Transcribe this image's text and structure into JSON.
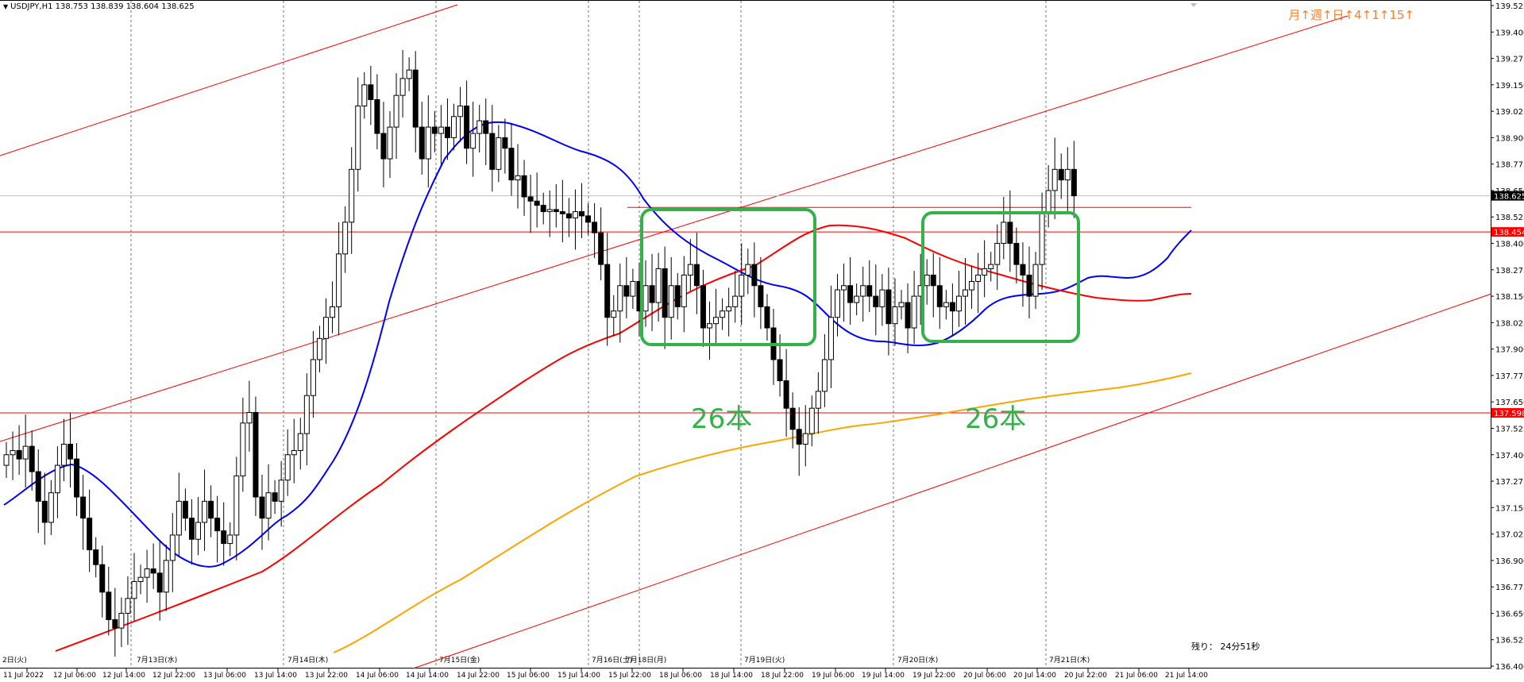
{
  "header": {
    "symbol_line": "USDJPY,H1  138.753 138.839 138.604 138.625"
  },
  "rate_label": "月↑週↑日↑4↑1↑15↑",
  "remaining_label": "残り： 24分51秒",
  "chart_data": {
    "type": "candlestick",
    "symbol": "USDJPY",
    "timeframe": "H1",
    "ohlc_current": {
      "open": 138.753,
      "high": 138.839,
      "low": 138.604,
      "close": 138.625
    },
    "ylim": [
      136.4,
      139.525
    ],
    "y_ticks": [
      "139.525",
      "139.400",
      "139.275",
      "139.150",
      "139.025",
      "138.900",
      "138.775",
      "138.650",
      "138.525",
      "138.400",
      "138.275",
      "138.150",
      "138.025",
      "137.900",
      "137.775",
      "137.650",
      "137.525",
      "137.400",
      "137.275",
      "137.150",
      "137.025",
      "136.900",
      "136.775",
      "136.650",
      "136.525",
      "136.400"
    ],
    "x_ticks": [
      "11 Jul 2022",
      "12 Jul 06:00",
      "12 Jul 14:00",
      "12 Jul 22:00",
      "13 Jul 06:00",
      "13 Jul 14:00",
      "13 Jul 22:00",
      "14 Jul 06:00",
      "14 Jul 14:00",
      "14 Jul 22:00",
      "15 Jul 06:00",
      "15 Jul 14:00",
      "15 Jul 22:00",
      "18 Jul 06:00",
      "18 Jul 14:00",
      "18 Jul 22:00",
      "19 Jul 06:00",
      "19 Jul 14:00",
      "19 Jul 22:00",
      "20 Jul 06:00",
      "20 Jul 14:00",
      "20 Jul 22:00",
      "21 Jul 06:00",
      "21 Jul 14:00"
    ],
    "day_separators": [
      "2日(火)",
      "7月13日(水)",
      "7月14日(木)",
      "7月15日(金)",
      "7月16日(土)",
      "7月18日(月)",
      "7月19日(火)",
      "7月20日(水)",
      "7月21日(木)"
    ],
    "price_labels": [
      {
        "value": 138.625,
        "text": "138.625",
        "color": "#000000"
      },
      {
        "value": 138.454,
        "text": "138.454",
        "color": "#ff0000"
      },
      {
        "value": 137.598,
        "text": "137.598",
        "color": "#ff0000"
      }
    ],
    "horizontal_lines": [
      138.454,
      137.598,
      138.57
    ],
    "annotations": [
      {
        "text": "26本"
      },
      {
        "text": "26本"
      }
    ],
    "closes": [
      137.4,
      137.42,
      137.38,
      137.44,
      137.32,
      137.18,
      137.08,
      137.22,
      137.35,
      137.45,
      137.38,
      137.2,
      137.1,
      136.95,
      136.88,
      136.75,
      136.62,
      136.58,
      136.65,
      136.72,
      136.8,
      136.82,
      136.86,
      136.84,
      136.75,
      136.9,
      137.02,
      137.18,
      137.1,
      137.0,
      137.08,
      137.18,
      137.1,
      137.04,
      136.98,
      137.02,
      137.3,
      137.55,
      137.6,
      137.2,
      137.1,
      137.22,
      137.18,
      137.28,
      137.4,
      137.42,
      137.5,
      137.68,
      137.85,
      137.95,
      138.05,
      138.1,
      138.35,
      138.5,
      138.75,
      139.05,
      139.15,
      139.08,
      138.92,
      138.8,
      138.95,
      139.1,
      139.18,
      139.22,
      138.95,
      138.8,
      138.95,
      138.92,
      138.95,
      138.9,
      139.0,
      139.05,
      138.85,
      138.92,
      138.98,
      138.92,
      138.75,
      138.9,
      138.85,
      138.7,
      138.72,
      138.62,
      138.6,
      138.58,
      138.55,
      138.56,
      138.55,
      138.54,
      138.52,
      138.55,
      138.53,
      138.5,
      138.45,
      138.3,
      138.05,
      138.08,
      138.2,
      138.15,
      138.22,
      138.08,
      138.2,
      138.12,
      138.28,
      138.05,
      138.2,
      138.1,
      138.25,
      138.3,
      138.2,
      138.0,
      138.02,
      138.05,
      138.08,
      138.1,
      138.15,
      138.25,
      138.3,
      138.2,
      138.1,
      138.0,
      137.85,
      137.75,
      137.62,
      137.52,
      137.45,
      137.5,
      137.62,
      137.7,
      137.85,
      138.05,
      138.18,
      138.2,
      138.12,
      138.15,
      138.2,
      138.15,
      138.1,
      138.18,
      138.02,
      138.1,
      138.12,
      138.0,
      138.15,
      138.2,
      138.25,
      138.2,
      138.1,
      138.12,
      138.08,
      138.15,
      138.18,
      138.22,
      138.25,
      138.28,
      138.3,
      138.4,
      138.5,
      138.4,
      138.3,
      138.25,
      138.15,
      138.3,
      138.55,
      138.65,
      138.75,
      138.7,
      138.75,
      138.625
    ]
  }
}
